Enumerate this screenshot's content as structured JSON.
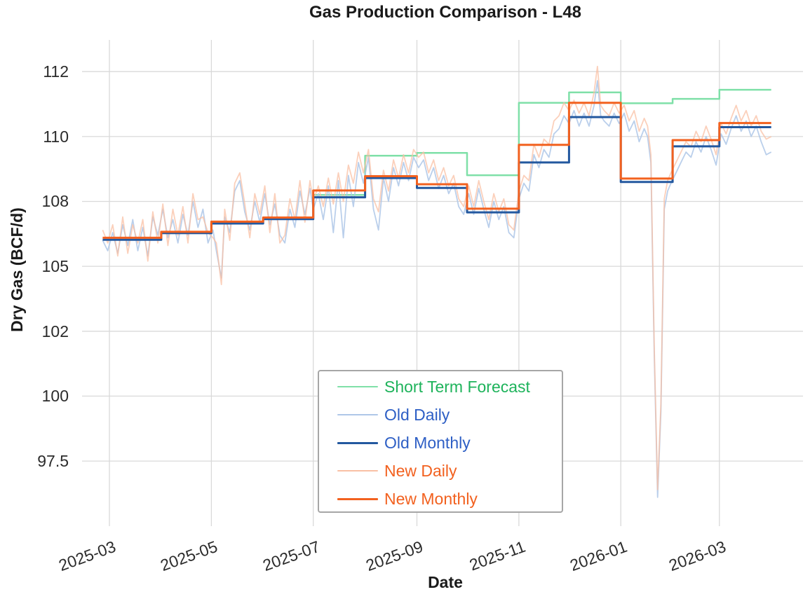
{
  "title": "Gas Production Comparison - L48",
  "x_axis": {
    "title": "Date",
    "ticks": [
      {
        "label": "2025-03",
        "date": "2025-03-01"
      },
      {
        "label": "2025-05",
        "date": "2025-05-01"
      },
      {
        "label": "2025-07",
        "date": "2025-07-01"
      },
      {
        "label": "2025-09",
        "date": "2025-09-01"
      },
      {
        "label": "2025-11",
        "date": "2025-11-01"
      },
      {
        "label": "2026-01",
        "date": "2026-01-01"
      },
      {
        "label": "2026-03",
        "date": "2026-03-01"
      }
    ]
  },
  "y_axis": {
    "title": "Dry Gas (BCF/d)",
    "ticks": [
      {
        "label": "112",
        "value": 112.5
      },
      {
        "label": "110",
        "value": 110
      },
      {
        "label": "108",
        "value": 107.5
      },
      {
        "label": "105",
        "value": 105
      },
      {
        "label": "102",
        "value": 102.5
      },
      {
        "label": "100",
        "value": 100
      },
      {
        "label": "97.5",
        "value": 97.5
      }
    ]
  },
  "legend": {
    "items": [
      {
        "label": "Short Term Forecast",
        "line_color": "#7fe0a8",
        "text_color": "#1eb35b",
        "line_width": 2.5
      },
      {
        "label": "Old Daily",
        "line_color": "#aec7e8",
        "text_color": "#2e5fc5",
        "line_width": 2
      },
      {
        "label": "Old Monthly",
        "line_color": "#23589f",
        "text_color": "#2e5fc5",
        "line_width": 3
      },
      {
        "label": "New Daily",
        "line_color": "#f9c0a4",
        "text_color": "#f2611f",
        "line_width": 2
      },
      {
        "label": "New Monthly",
        "line_color": "#f2611f",
        "text_color": "#f2611f",
        "line_width": 3
      }
    ]
  },
  "chart_data": {
    "type": "line",
    "title": "Gas Production Comparison - L48",
    "xlabel": "Date",
    "ylabel": "Dry Gas (BCF/d)",
    "x_domain": [
      "2025-02-16",
      "2026-04-20"
    ],
    "y_domain": [
      95.1,
      113.72
    ],
    "grid": true,
    "grid_color": "#d9d9d9",
    "legend_position": "lower-center",
    "forecast": {
      "name": "Short Term Forecast",
      "color": "#7fe0a8",
      "width": 2.5,
      "boundaries": [
        "2025-07-01",
        "2025-08-01",
        "2025-09-01",
        "2025-10-01",
        "2025-11-01",
        "2025-12-01",
        "2026-01-01",
        "2026-02-01",
        "2026-03-01",
        "2026-04-01"
      ],
      "values": [
        107.75,
        109.26,
        109.37,
        108.51,
        111.3,
        111.7,
        111.28,
        111.45,
        111.8
      ]
    },
    "monthly": {
      "boundaries": [
        "2025-02-25",
        "2025-04-01",
        "2025-05-01",
        "2025-06-01",
        "2025-07-01",
        "2025-08-01",
        "2025-09-01",
        "2025-10-01",
        "2025-11-01",
        "2025-12-01",
        "2026-01-01",
        "2026-02-01",
        "2026-03-01",
        "2026-04-01"
      ],
      "old": {
        "name": "Old Monthly",
        "color": "#23589f",
        "width": 3,
        "values": [
          106.02,
          106.28,
          106.65,
          106.82,
          107.66,
          108.4,
          108.02,
          107.08,
          109.0,
          110.75,
          108.25,
          109.62,
          110.36
        ]
      },
      "new": {
        "name": "New Monthly",
        "color": "#f2611f",
        "width": 3,
        "values": [
          106.1,
          106.33,
          106.72,
          106.88,
          107.92,
          108.47,
          108.16,
          107.22,
          109.68,
          111.3,
          108.38,
          109.86,
          110.52
        ]
      }
    },
    "daily": {
      "dates": [
        "2025-02-25",
        "2025-02-28",
        "2025-03-03",
        "2025-03-06",
        "2025-03-09",
        "2025-03-12",
        "2025-03-15",
        "2025-03-18",
        "2025-03-21",
        "2025-03-24",
        "2025-03-27",
        "2025-03-30",
        "2025-04-02",
        "2025-04-05",
        "2025-04-08",
        "2025-04-11",
        "2025-04-14",
        "2025-04-17",
        "2025-04-20",
        "2025-04-23",
        "2025-04-26",
        "2025-04-29",
        "2025-05-02",
        "2025-05-04",
        "2025-05-07",
        "2025-05-09",
        "2025-05-12",
        "2025-05-15",
        "2025-05-18",
        "2025-05-21",
        "2025-05-24",
        "2025-05-27",
        "2025-05-30",
        "2025-06-02",
        "2025-06-05",
        "2025-06-08",
        "2025-06-11",
        "2025-06-14",
        "2025-06-17",
        "2025-06-20",
        "2025-06-23",
        "2025-06-26",
        "2025-06-29",
        "2025-07-01",
        "2025-07-04",
        "2025-07-07",
        "2025-07-10",
        "2025-07-13",
        "2025-07-16",
        "2025-07-19",
        "2025-07-22",
        "2025-07-25",
        "2025-07-28",
        "2025-07-31",
        "2025-08-03",
        "2025-08-06",
        "2025-08-09",
        "2025-08-12",
        "2025-08-15",
        "2025-08-18",
        "2025-08-21",
        "2025-08-24",
        "2025-08-27",
        "2025-08-30",
        "2025-09-02",
        "2025-09-05",
        "2025-09-08",
        "2025-09-11",
        "2025-09-14",
        "2025-09-17",
        "2025-09-20",
        "2025-09-23",
        "2025-09-26",
        "2025-09-29",
        "2025-10-02",
        "2025-10-05",
        "2025-10-08",
        "2025-10-11",
        "2025-10-14",
        "2025-10-17",
        "2025-10-20",
        "2025-10-23",
        "2025-10-26",
        "2025-10-29",
        "2025-11-01",
        "2025-11-04",
        "2025-11-07",
        "2025-11-10",
        "2025-11-13",
        "2025-11-16",
        "2025-11-19",
        "2025-11-22",
        "2025-11-25",
        "2025-11-28",
        "2025-12-01",
        "2025-12-04",
        "2025-12-07",
        "2025-12-10",
        "2025-12-13",
        "2025-12-16",
        "2025-12-18",
        "2025-12-20",
        "2025-12-22",
        "2025-12-25",
        "2025-12-28",
        "2025-12-31",
        "2026-01-03",
        "2026-01-06",
        "2026-01-09",
        "2026-01-12",
        "2026-01-15",
        "2026-01-17",
        "2026-01-19",
        "2026-01-21",
        "2026-01-23",
        "2026-01-25",
        "2026-01-27",
        "2026-01-29",
        "2026-01-31",
        "2026-02-03",
        "2026-02-06",
        "2026-02-09",
        "2026-02-12",
        "2026-02-15",
        "2026-02-18",
        "2026-02-21",
        "2026-02-24",
        "2026-02-27",
        "2026-03-02",
        "2026-03-05",
        "2026-03-08",
        "2026-03-11",
        "2026-03-14",
        "2026-03-17",
        "2026-03-20",
        "2026-03-23",
        "2026-03-26",
        "2026-03-29",
        "2026-04-01"
      ],
      "old": {
        "name": "Old Daily",
        "color": "#aec7e8",
        "width": 1.8,
        "opacity": 0.85,
        "values": [
          106.0,
          105.6,
          106.3,
          105.5,
          106.6,
          105.8,
          106.8,
          105.6,
          106.5,
          105.4,
          106.9,
          106.2,
          107.2,
          106.1,
          106.8,
          105.9,
          107.0,
          106.2,
          107.5,
          106.5,
          107.2,
          105.9,
          106.4,
          105.6,
          104.55,
          106.9,
          106.3,
          107.9,
          108.3,
          107.1,
          106.4,
          107.5,
          106.7,
          107.8,
          106.6,
          107.4,
          106.2,
          105.9,
          107.2,
          106.5,
          107.9,
          107.0,
          108.0,
          107.2,
          107.8,
          106.8,
          108.1,
          106.3,
          108.3,
          106.1,
          108.5,
          107.3,
          109.0,
          108.2,
          109.2,
          107.2,
          106.4,
          108.4,
          107.5,
          108.8,
          108.1,
          109.0,
          108.3,
          109.2,
          108.8,
          109.1,
          108.3,
          108.8,
          108.0,
          108.5,
          107.8,
          108.2,
          107.3,
          107.0,
          107.8,
          107.0,
          108.0,
          107.2,
          106.5,
          107.5,
          106.8,
          107.3,
          106.3,
          106.1,
          107.6,
          108.2,
          107.9,
          109.3,
          108.8,
          109.5,
          109.2,
          110.1,
          110.3,
          110.8,
          110.5,
          111.0,
          110.4,
          110.9,
          110.4,
          111.2,
          112.15,
          110.8,
          110.6,
          110.4,
          110.9,
          110.5,
          110.9,
          110.2,
          110.6,
          109.8,
          110.3,
          110.0,
          109.0,
          101.6,
          96.1,
          99.4,
          107.2,
          107.9,
          108.2,
          108.6,
          109.0,
          109.4,
          109.2,
          109.8,
          109.4,
          110.0,
          109.5,
          108.9,
          110.1,
          109.7,
          110.3,
          110.8,
          110.2,
          110.6,
          110.0,
          110.4,
          109.8,
          109.3,
          109.4
        ]
      },
      "new": {
        "name": "New Daily",
        "color": "#f9c0a4",
        "width": 1.8,
        "opacity": 0.75,
        "values": [
          106.4,
          105.9,
          106.6,
          105.4,
          106.9,
          105.5,
          106.6,
          105.9,
          106.8,
          105.2,
          107.1,
          105.9,
          107.4,
          105.8,
          107.2,
          106.2,
          107.3,
          105.9,
          107.8,
          106.8,
          106.9,
          106.3,
          106.1,
          105.9,
          104.3,
          107.2,
          106.0,
          108.2,
          108.6,
          107.4,
          106.1,
          107.8,
          107.0,
          108.1,
          106.3,
          107.8,
          105.9,
          106.2,
          107.6,
          106.8,
          108.3,
          106.7,
          108.3,
          107.5,
          108.1,
          107.3,
          108.4,
          107.4,
          108.6,
          107.5,
          108.9,
          108.2,
          109.4,
          108.6,
          109.5,
          107.6,
          107.1,
          108.7,
          107.9,
          109.1,
          108.4,
          109.3,
          108.6,
          109.5,
          109.2,
          109.4,
          108.6,
          109.1,
          108.3,
          108.8,
          108.1,
          108.5,
          107.6,
          107.3,
          108.1,
          107.3,
          108.3,
          107.5,
          106.8,
          107.8,
          107.1,
          107.6,
          106.6,
          106.4,
          107.9,
          108.5,
          108.3,
          109.7,
          109.2,
          109.9,
          109.7,
          110.6,
          110.8,
          111.3,
          111.0,
          111.4,
          110.9,
          111.3,
          110.8,
          111.7,
          112.7,
          111.2,
          111.0,
          110.8,
          111.3,
          110.9,
          111.2,
          110.6,
          111.0,
          110.2,
          110.7,
          110.4,
          109.3,
          101.9,
          96.4,
          99.7,
          107.6,
          108.3,
          108.6,
          109.0,
          109.4,
          109.8,
          109.6,
          110.2,
          109.8,
          110.4,
          109.9,
          109.3,
          110.5,
          110.1,
          110.7,
          111.2,
          110.6,
          111.0,
          110.4,
          110.8,
          110.2,
          109.9,
          110.0
        ]
      }
    }
  }
}
